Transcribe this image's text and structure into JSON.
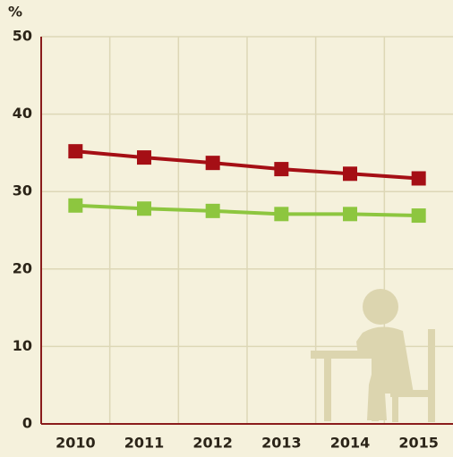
{
  "chart_data": {
    "type": "line",
    "ylabel": "%",
    "categories": [
      "2010",
      "2011",
      "2012",
      "2013",
      "2014",
      "2015"
    ],
    "series": [
      {
        "color": "#a50f15",
        "values": [
          35.2,
          34.4,
          33.7,
          32.9,
          32.3,
          31.7
        ]
      },
      {
        "color": "#8dc63f",
        "values": [
          28.2,
          27.8,
          27.5,
          27.1,
          27.1,
          26.9
        ]
      }
    ],
    "ylim": [
      0,
      50
    ],
    "yticks": [
      0,
      10,
      20,
      30,
      40,
      50
    ],
    "grid": true
  }
}
